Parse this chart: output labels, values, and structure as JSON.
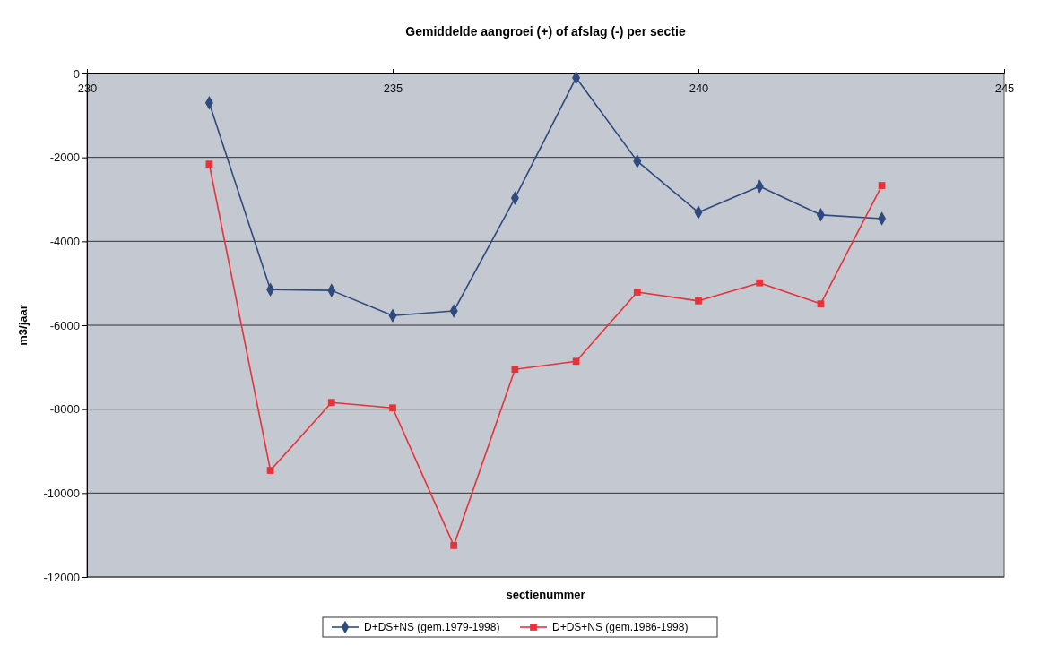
{
  "chart_data": {
    "type": "line",
    "title": "Gemiddelde aangroei (+) of afslag (-) per sectie",
    "xlabel": "sectienummer",
    "ylabel": "m3/jaar",
    "x": [
      232,
      233,
      234,
      235,
      236,
      237,
      238,
      239,
      240,
      241,
      242,
      243
    ],
    "xlim": [
      230,
      245
    ],
    "xticks": [
      230,
      235,
      240,
      245
    ],
    "ylim": [
      -12000,
      0
    ],
    "yticks": [
      -12000,
      -10000,
      -8000,
      -6000,
      -4000,
      -2000,
      0
    ],
    "grid": "y",
    "legend": "bottom",
    "line_style": "solid",
    "series": [
      {
        "name": "D+DS+NS (gem.1979-1998)",
        "color": "#2f4a7e",
        "marker": "diamond",
        "values": [
          -700,
          -5150,
          -5170,
          -5770,
          -5660,
          -2970,
          -100,
          -2090,
          -3310,
          -2690,
          -3370,
          -3460
        ]
      },
      {
        "name": "D+DS+NS (gem.1986-1998)",
        "color": "#e8323a",
        "marker": "square",
        "values": [
          -2160,
          -9460,
          -7840,
          -7970,
          -11250,
          -7050,
          -6860,
          -5210,
          -5420,
          -4990,
          -5490,
          -2670
        ]
      }
    ]
  }
}
